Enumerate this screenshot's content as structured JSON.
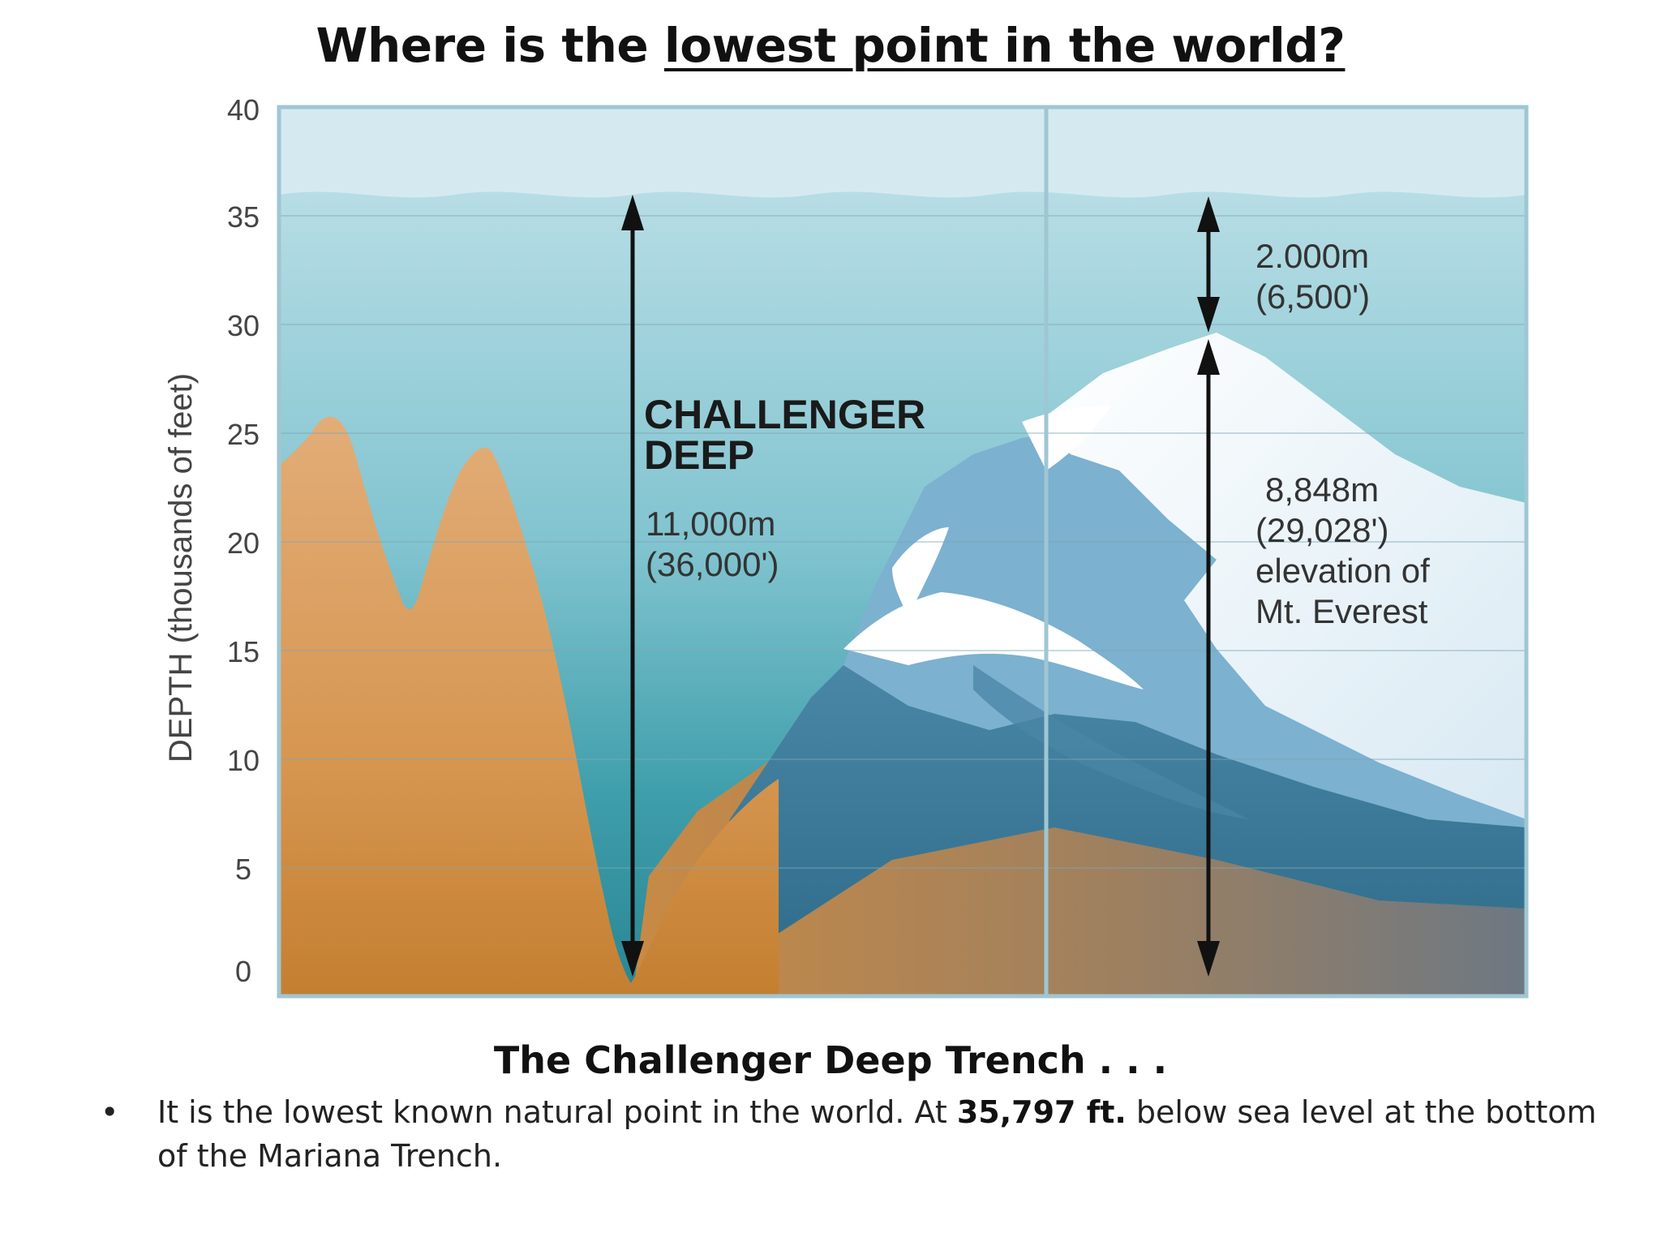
{
  "title": {
    "prefix": "Where is the ",
    "underlined": "lowest point in the world?"
  },
  "diagram": {
    "y_axis": {
      "label": "DEPTH (thousands of feet)",
      "ticks": [
        "40",
        "35",
        "30",
        "25",
        "20",
        "15",
        "10",
        "5",
        "0"
      ]
    },
    "challenger": {
      "name_line1": "CHALLENGER",
      "name_line2": "DEEP",
      "meters": "11,000m",
      "feet": "(36,000')"
    },
    "gap": {
      "meters": "2.000m",
      "feet": "(6,500')"
    },
    "everest": {
      "meters": "8,848m",
      "feet": "(29,028')",
      "line3": "elevation of",
      "line4": "Mt. Everest"
    },
    "colors": {
      "sky": "#d7ebf0",
      "water_top": "#a9d6df",
      "water_deep": "#3aa0ad",
      "seafloor": "#d59a55",
      "mountain_dark": "#2f6f8f",
      "snow": "#ffffff"
    }
  },
  "subtitle": "The Challenger Deep Trench . . .",
  "bullet": {
    "symbol": "•",
    "text_before": "It is the lowest known natural point in the world.   At ",
    "bold": "35,797 ft.",
    "text_after": " below sea level at the bottom of the Mariana Trench."
  }
}
